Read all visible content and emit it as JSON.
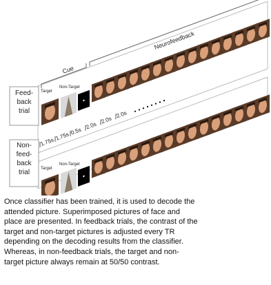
{
  "figure": {
    "neurofeedback": "Neurofeedback",
    "cue": "Cue",
    "feedback_trial": [
      "Feed-",
      "back",
      "trial"
    ],
    "nonfeedback_trial": [
      "Non-",
      "feed-",
      "back",
      "trial"
    ],
    "target": "Target",
    "non_target": "Non-Target",
    "timings": [
      "1.75s",
      "1.75s",
      "0.5s",
      "2.0s",
      "2.0s",
      "2.0s"
    ]
  },
  "caption": {
    "lines": [
      "Once classifier has been trained, it is used to decode the",
      "attended picture. Superimposed pictures of face and",
      "place are presented. In feedback trials, the contrast of the",
      "target and non-target pictures is adjusted every TR",
      "depending on the decoding results from the classifier.",
      "Whereas, in non-feedback trials, the target and non-",
      "target picture always remain at 50/50 contrast."
    ]
  }
}
